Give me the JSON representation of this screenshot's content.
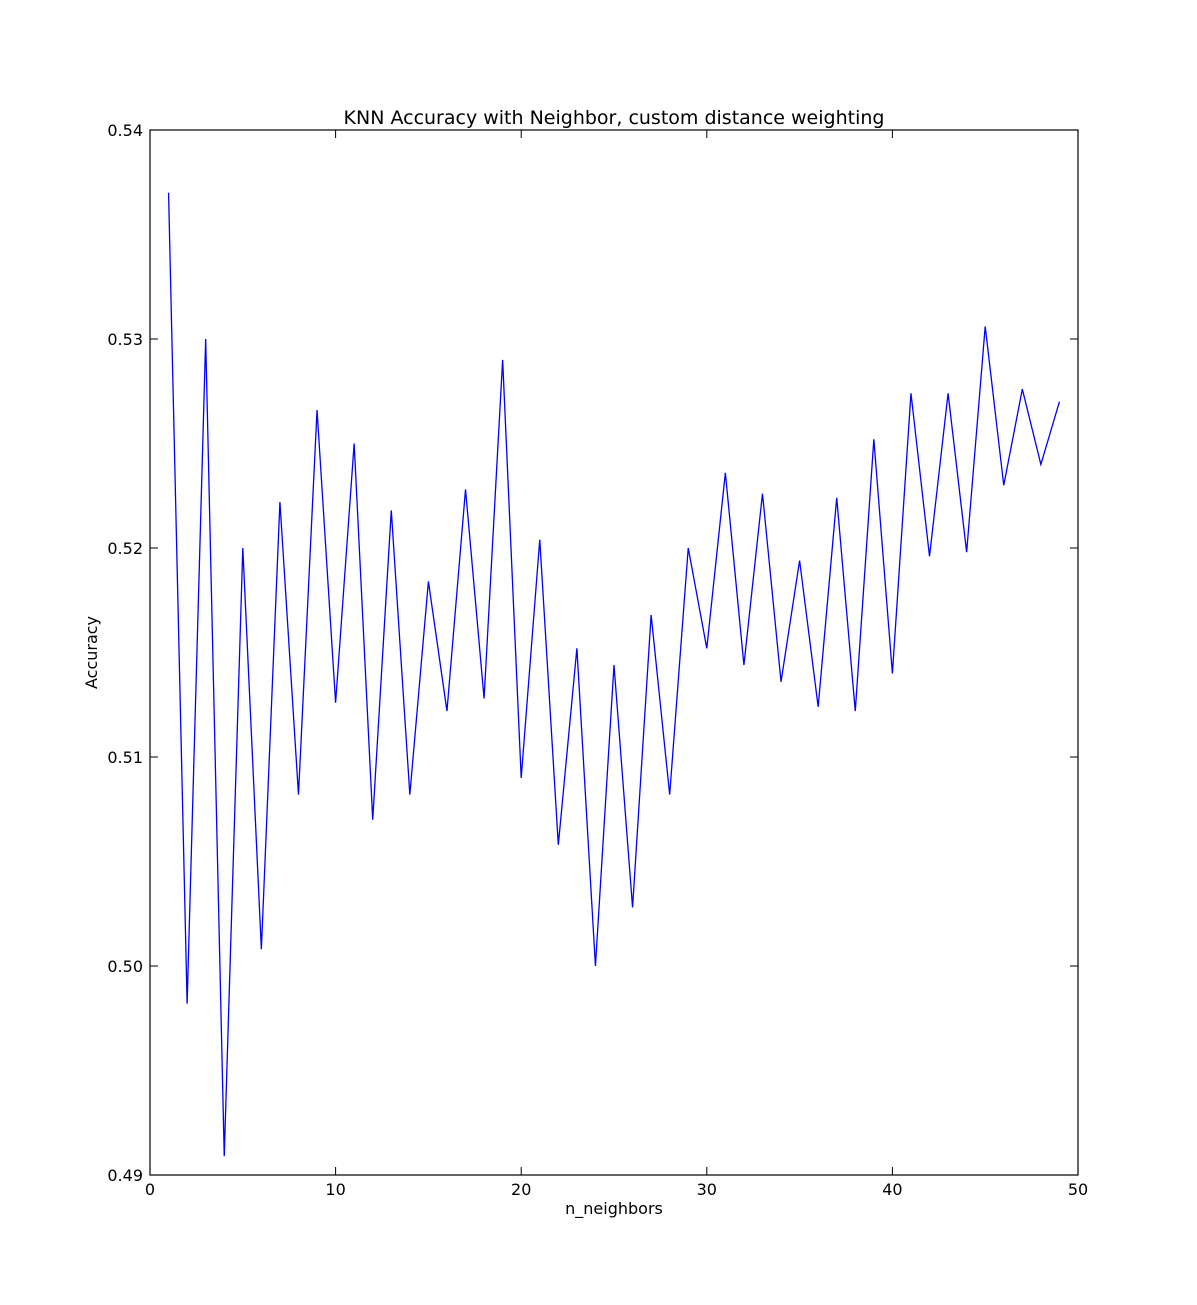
{
  "chart_data": {
    "type": "line",
    "title": "KNN Accuracy with Neighbor, custom distance weighting",
    "xlabel": "n_neighbors",
    "ylabel": "Accuracy",
    "xlim": [
      0,
      50
    ],
    "ylim": [
      0.49,
      0.54
    ],
    "xticks": [
      0,
      10,
      20,
      30,
      40,
      50
    ],
    "xtick_labels": [
      "0",
      "10",
      "20",
      "30",
      "40",
      "50"
    ],
    "yticks": [
      0.49,
      0.5,
      0.51,
      0.52,
      0.53,
      0.54
    ],
    "ytick_labels": [
      "0.49",
      "0.50",
      "0.51",
      "0.52",
      "0.53",
      "0.54"
    ],
    "grid": false,
    "legend": "none",
    "series": [
      {
        "color": "#0000ff",
        "x": [
          1,
          2,
          3,
          4,
          5,
          6,
          7,
          8,
          9,
          10,
          11,
          12,
          13,
          14,
          15,
          16,
          17,
          18,
          19,
          20,
          21,
          22,
          23,
          24,
          25,
          26,
          27,
          28,
          29,
          30,
          31,
          32,
          33,
          34,
          35,
          36,
          37,
          38,
          39,
          40,
          41,
          42,
          43,
          44,
          45,
          46,
          47,
          48,
          49
        ],
        "y": [
          0.537,
          0.4982,
          0.53,
          0.4909,
          0.52,
          0.5008,
          0.5222,
          0.5082,
          0.5266,
          0.5126,
          0.525,
          0.507,
          0.5218,
          0.5082,
          0.5184,
          0.5122,
          0.5228,
          0.5128,
          0.529,
          0.509,
          0.5204,
          0.5058,
          0.5152,
          0.5,
          0.5144,
          0.5028,
          0.5168,
          0.5082,
          0.52,
          0.5152,
          0.5236,
          0.5144,
          0.5226,
          0.5136,
          0.5194,
          0.5124,
          0.5224,
          0.5122,
          0.5252,
          0.514,
          0.5274,
          0.5196,
          0.5274,
          0.5198,
          0.5306,
          0.523,
          0.5276,
          0.524,
          0.527
        ]
      }
    ]
  }
}
